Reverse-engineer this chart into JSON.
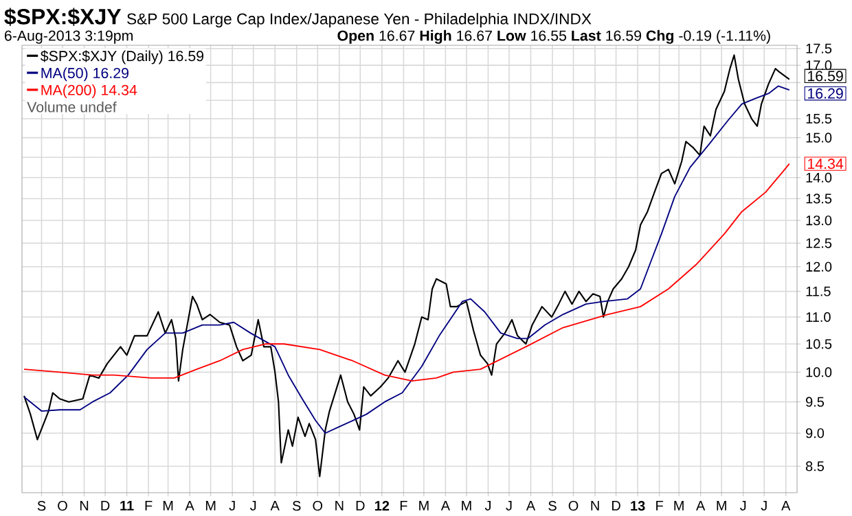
{
  "chart_data": {
    "type": "line",
    "title": "$SPX:$XJY",
    "subtitle": "S&P 500 Large Cap Index/Japanese Yen - Philadelphia INDX/INDX",
    "annotations": [
      "6-Aug-2013 3:19pm",
      "**Open** 16.67 **High** 16.67 **Low** 16.55 **Last** 16.59 **Chg** -0.19 (-1.11%)",
      "Volume undef",
      {
        "text": "16.59",
        "x": "2013-08-06",
        "y": 16.59
      },
      {
        "text": "16.29",
        "x": "2013-08-06",
        "y": 16.29
      },
      {
        "text": "14.34",
        "x": "2013-08-06",
        "y": 14.34
      }
    ],
    "log": "y",
    "grid": true,
    "legend": "top left",
    "xlim": [
      "2010-08-04",
      "2013-08-17"
    ],
    "ylim": [
      8.12,
      17.6
    ],
    "xticks": [
      {
        "value": "2010-09-01",
        "label": "S"
      },
      {
        "value": "2010-10-01",
        "label": "O"
      },
      {
        "value": "2010-11-01",
        "label": "N"
      },
      {
        "value": "2010-12-01",
        "label": "D"
      },
      {
        "value": "2011-01-01",
        "label": "**11**"
      },
      {
        "value": "2011-02-01",
        "label": "F"
      },
      {
        "value": "2011-03-01",
        "label": "M"
      },
      {
        "value": "2011-04-01",
        "label": "A"
      },
      {
        "value": "2011-05-01",
        "label": "M"
      },
      {
        "value": "2011-06-01",
        "label": "J"
      },
      {
        "value": "2011-07-01",
        "label": "J"
      },
      {
        "value": "2011-08-01",
        "label": "A"
      },
      {
        "value": "2011-09-01",
        "label": "S"
      },
      {
        "value": "2011-10-01",
        "label": "O"
      },
      {
        "value": "2011-11-01",
        "label": "N"
      },
      {
        "value": "2011-12-01",
        "label": "D"
      },
      {
        "value": "2012-01-01",
        "label": "**12**"
      },
      {
        "value": "2012-02-01",
        "label": "F"
      },
      {
        "value": "2012-03-01",
        "label": "M"
      },
      {
        "value": "2012-04-01",
        "label": "A"
      },
      {
        "value": "2012-05-01",
        "label": "M"
      },
      {
        "value": "2012-06-01",
        "label": "J"
      },
      {
        "value": "2012-07-01",
        "label": "J"
      },
      {
        "value": "2012-08-01",
        "label": "A"
      },
      {
        "value": "2012-09-01",
        "label": "S"
      },
      {
        "value": "2012-10-01",
        "label": "O"
      },
      {
        "value": "2012-11-01",
        "label": "N"
      },
      {
        "value": "2012-12-01",
        "label": "D"
      },
      {
        "value": "2013-01-01",
        "label": "**13**"
      },
      {
        "value": "2013-02-01",
        "label": "F"
      },
      {
        "value": "2013-03-01",
        "label": "M"
      },
      {
        "value": "2013-04-01",
        "label": "A"
      },
      {
        "value": "2013-05-01",
        "label": "M"
      },
      {
        "value": "2013-06-01",
        "label": "J"
      },
      {
        "value": "2013-07-01",
        "label": "J"
      },
      {
        "value": "2013-08-01",
        "label": "A"
      }
    ],
    "yticks": [
      8.5,
      {
        "value": 9.0,
        "label": "9.0"
      },
      9.5,
      {
        "value": 10.0,
        "label": "10.0"
      },
      10.5,
      {
        "value": 11.0,
        "label": "11.0"
      },
      11.5,
      {
        "value": 12.0,
        "label": "12.0"
      },
      12.5,
      {
        "value": 13.0,
        "label": "13.0"
      },
      13.5,
      {
        "value": 14.0,
        "label": "14.0"
      },
      {
        "value": 14.5,
        "label": null
      },
      {
        "value": 15.0,
        "label": "15.0"
      },
      15.5,
      {
        "value": 16.0,
        "label": null
      },
      {
        "value": 16.5,
        "label": null
      },
      {
        "value": 17.0,
        "label": "17.0"
      },
      17.5
    ],
    "series": [
      {
        "name": "$SPX:$XJY (Daily) 16.59",
        "color": "#000000",
        "x": [
          "2010-08-07",
          "2010-08-16",
          "2010-08-26",
          "2010-09-04",
          "2010-09-11",
          "2010-09-17",
          "2010-09-27",
          "2010-10-10",
          "2010-10-30",
          "2010-11-09",
          "2010-11-22",
          "2010-12-04",
          "2010-12-23",
          "2011-01-01",
          "2011-01-12",
          "2011-01-30",
          "2011-02-15",
          "2011-02-25",
          "2011-03-06",
          "2011-03-12",
          "2011-03-16",
          "2011-03-22",
          "2011-04-05",
          "2011-04-11",
          "2011-04-19",
          "2011-04-30",
          "2011-05-14",
          "2011-05-28",
          "2011-06-07",
          "2011-06-16",
          "2011-06-28",
          "2011-07-08",
          "2011-07-16",
          "2011-07-26",
          "2011-08-01",
          "2011-08-06",
          "2011-08-10",
          "2011-08-20",
          "2011-08-26",
          "2011-09-03",
          "2011-09-13",
          "2011-09-19",
          "2011-09-28",
          "2011-10-04",
          "2011-10-12",
          "2011-10-18",
          "2011-11-03",
          "2011-11-13",
          "2011-11-22",
          "2011-11-30",
          "2011-12-06",
          "2011-12-16",
          "2011-12-30",
          "2012-01-10",
          "2012-01-24",
          "2012-02-03",
          "2012-02-17",
          "2012-02-27",
          "2012-03-07",
          "2012-03-13",
          "2012-03-19",
          "2012-04-02",
          "2012-04-08",
          "2012-04-17",
          "2012-05-01",
          "2012-05-11",
          "2012-05-21",
          "2012-05-31",
          "2012-06-06",
          "2012-06-13",
          "2012-06-25",
          "2012-07-05",
          "2012-07-13",
          "2012-07-25",
          "2012-08-03",
          "2012-08-17",
          "2012-08-31",
          "2012-09-10",
          "2012-09-19",
          "2012-09-29",
          "2012-10-09",
          "2012-10-19",
          "2012-10-29",
          "2012-11-08",
          "2012-11-13",
          "2012-11-19",
          "2012-11-27",
          "2012-12-09",
          "2012-12-19",
          "2012-12-29",
          "2013-01-05",
          "2013-01-15",
          "2013-01-25",
          "2013-02-04",
          "2013-02-14",
          "2013-02-23",
          "2013-03-05",
          "2013-03-11",
          "2013-03-21",
          "2013-03-31",
          "2013-04-06",
          "2013-04-15",
          "2013-04-23",
          "2013-05-05",
          "2013-05-13",
          "2013-05-19",
          "2013-05-25",
          "2013-06-03",
          "2013-06-13",
          "2013-06-21",
          "2013-06-27",
          "2013-07-07",
          "2013-07-17",
          "2013-07-23",
          "2013-08-06"
        ],
        "values": [
          9.6,
          9.3,
          8.9,
          9.15,
          9.35,
          9.65,
          9.55,
          9.5,
          9.55,
          9.95,
          9.9,
          10.15,
          10.45,
          10.3,
          10.65,
          10.65,
          11.1,
          10.7,
          10.95,
          10.6,
          9.85,
          10.4,
          11.4,
          11.25,
          10.95,
          11.05,
          10.9,
          10.85,
          10.45,
          10.2,
          10.3,
          10.95,
          10.45,
          10.45,
          10.0,
          9.5,
          8.55,
          9.05,
          8.8,
          9.25,
          8.95,
          9.15,
          8.9,
          8.35,
          9.05,
          9.35,
          9.95,
          9.5,
          9.3,
          9.05,
          9.75,
          9.6,
          9.75,
          9.9,
          10.2,
          10.0,
          10.5,
          11.0,
          10.95,
          11.55,
          11.75,
          11.65,
          11.2,
          11.2,
          11.3,
          10.75,
          10.3,
          10.15,
          9.95,
          10.5,
          10.7,
          10.95,
          10.65,
          10.5,
          10.85,
          11.2,
          11.0,
          11.25,
          11.5,
          11.25,
          11.5,
          11.3,
          11.45,
          11.4,
          11.0,
          11.3,
          11.55,
          11.75,
          12.0,
          12.35,
          12.9,
          13.2,
          13.65,
          14.1,
          14.2,
          13.85,
          14.4,
          14.9,
          14.75,
          14.55,
          15.3,
          15.05,
          15.75,
          16.25,
          16.9,
          17.3,
          16.6,
          15.9,
          15.5,
          15.3,
          15.9,
          16.45,
          16.9,
          16.8,
          16.59
        ]
      },
      {
        "name": "MA(50) 16.29",
        "color": "#000080",
        "x": [
          "2010-08-07",
          "2010-09-01",
          "2010-09-27",
          "2010-10-26",
          "2010-11-13",
          "2010-12-08",
          "2011-01-03",
          "2011-01-30",
          "2011-02-25",
          "2011-03-22",
          "2011-04-19",
          "2011-05-14",
          "2011-06-03",
          "2011-06-27",
          "2011-07-18",
          "2011-08-01",
          "2011-08-20",
          "2011-09-09",
          "2011-09-28",
          "2011-10-12",
          "2011-11-01",
          "2011-11-21",
          "2011-12-10",
          "2012-01-05",
          "2012-01-30",
          "2012-02-27",
          "2012-03-23",
          "2012-04-25",
          "2012-05-07",
          "2012-05-27",
          "2012-06-19",
          "2012-07-13",
          "2012-07-28",
          "2012-08-21",
          "2012-09-16",
          "2012-10-19",
          "2012-11-13",
          "2012-12-17",
          "2013-01-05",
          "2013-01-17",
          "2013-02-04",
          "2013-02-23",
          "2013-03-17",
          "2013-04-14",
          "2013-05-10",
          "2013-05-30",
          "2013-06-18",
          "2013-07-08",
          "2013-07-21",
          "2013-08-06"
        ],
        "values": [
          9.58,
          9.35,
          9.37,
          9.37,
          9.5,
          9.65,
          9.95,
          10.4,
          10.7,
          10.7,
          10.85,
          10.85,
          10.9,
          10.7,
          10.55,
          10.45,
          9.95,
          9.55,
          9.2,
          9.0,
          9.1,
          9.2,
          9.3,
          9.5,
          9.65,
          10.1,
          10.65,
          11.3,
          11.35,
          11.1,
          10.7,
          10.6,
          10.6,
          10.85,
          11.05,
          11.25,
          11.3,
          11.35,
          11.55,
          12.0,
          12.7,
          13.55,
          14.25,
          14.85,
          15.45,
          15.9,
          16.05,
          16.2,
          16.4,
          16.29
        ]
      },
      {
        "name": "MA(200) 14.34",
        "color": "#ff0000",
        "x": [
          "2010-08-07",
          "2010-09-27",
          "2010-11-13",
          "2010-12-14",
          "2011-02-05",
          "2011-03-10",
          "2011-04-11",
          "2011-05-14",
          "2011-06-16",
          "2011-07-18",
          "2011-08-14",
          "2011-10-04",
          "2011-11-20",
          "2012-01-05",
          "2012-02-13",
          "2012-03-19",
          "2012-04-12",
          "2012-05-21",
          "2012-07-25",
          "2012-09-16",
          "2012-11-19",
          "2013-01-05",
          "2013-02-14",
          "2013-03-26",
          "2013-05-05",
          "2013-05-30",
          "2013-07-03",
          "2013-07-28",
          "2013-08-06"
        ],
        "values": [
          10.05,
          10.0,
          9.95,
          9.95,
          9.9,
          9.9,
          10.05,
          10.2,
          10.4,
          10.5,
          10.5,
          10.4,
          10.2,
          9.95,
          9.85,
          9.9,
          10.0,
          10.05,
          10.45,
          10.8,
          11.05,
          11.2,
          11.55,
          12.05,
          12.7,
          13.2,
          13.65,
          14.15,
          14.34
        ]
      }
    ]
  }
}
